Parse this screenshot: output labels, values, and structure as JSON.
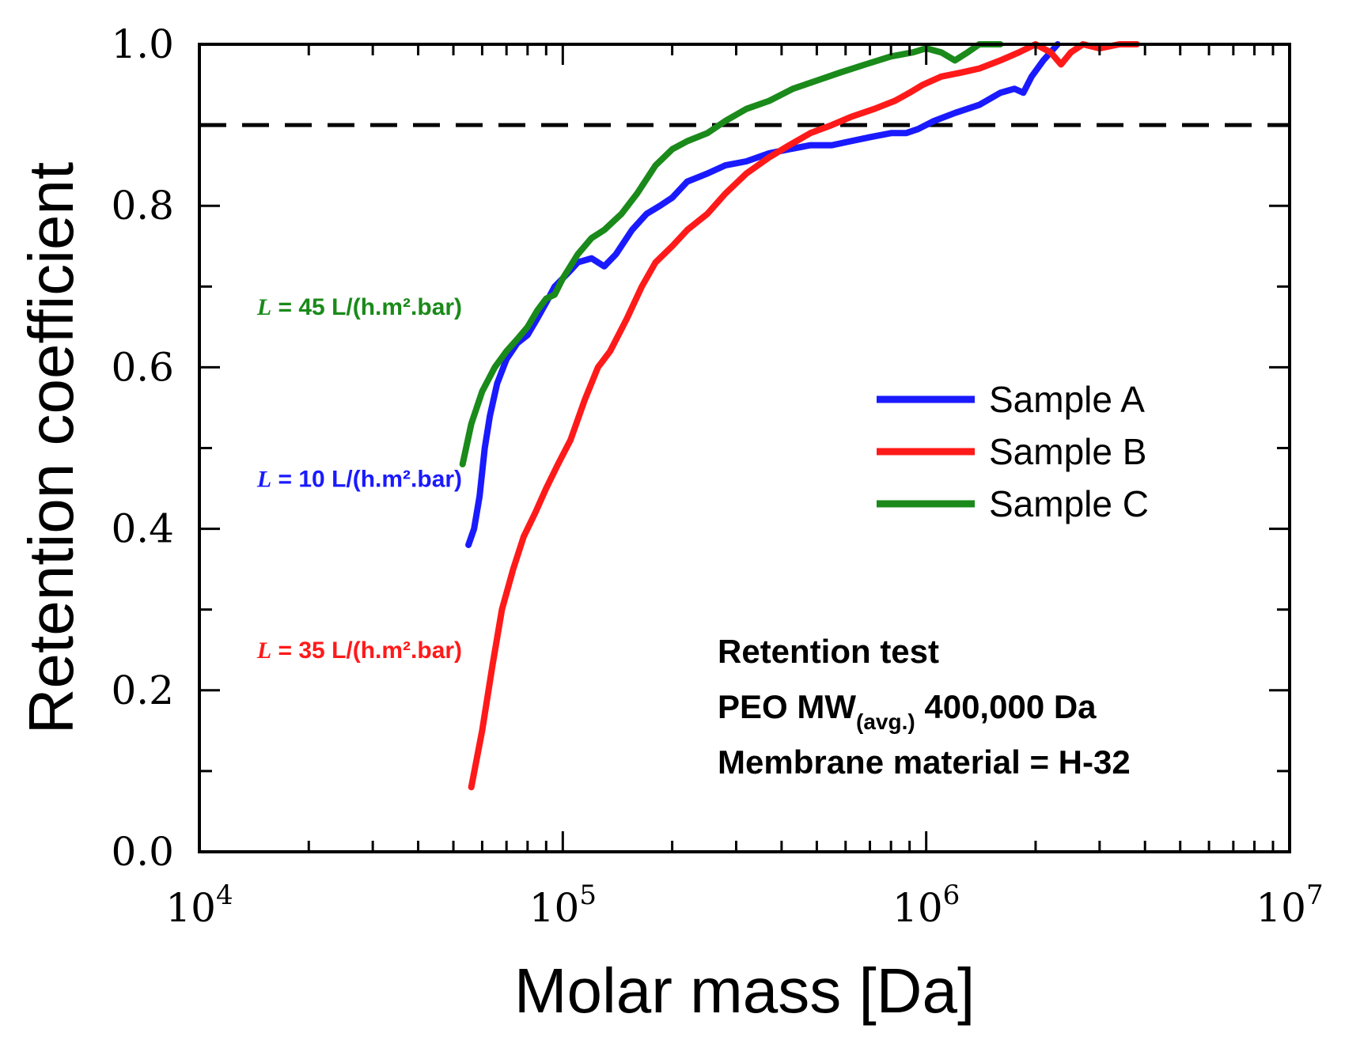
{
  "chart_data": {
    "type": "line",
    "title": "",
    "xlabel": "Molar mass [Da]",
    "ylabel": "Retention coefficient",
    "xscale": "log",
    "xlim": [
      10000,
      10000000
    ],
    "ylim": [
      0.0,
      1.0
    ],
    "x_ticks": [
      {
        "value": 10000,
        "base": "10",
        "exp": "4"
      },
      {
        "value": 100000,
        "base": "10",
        "exp": "5"
      },
      {
        "value": 1000000,
        "base": "10",
        "exp": "6"
      },
      {
        "value": 10000000,
        "base": "10",
        "exp": "7"
      }
    ],
    "y_ticks": [
      {
        "value": 0.0,
        "label": "0.0"
      },
      {
        "value": 0.2,
        "label": "0.2"
      },
      {
        "value": 0.4,
        "label": "0.4"
      },
      {
        "value": 0.6,
        "label": "0.6"
      },
      {
        "value": 0.8,
        "label": "0.8"
      },
      {
        "value": 1.0,
        "label": "1.0"
      }
    ],
    "reference_line": {
      "y": 0.9,
      "style": "dashed",
      "color": "#000000"
    },
    "legend": {
      "position": "center-right"
    },
    "series": [
      {
        "name": "Sample A",
        "color": "#1a1aff",
        "points": [
          [
            55000,
            0.38
          ],
          [
            57000,
            0.4
          ],
          [
            59000,
            0.44
          ],
          [
            61000,
            0.5
          ],
          [
            63000,
            0.54
          ],
          [
            66000,
            0.58
          ],
          [
            70000,
            0.61
          ],
          [
            75000,
            0.63
          ],
          [
            80000,
            0.64
          ],
          [
            85000,
            0.66
          ],
          [
            90000,
            0.68
          ],
          [
            95000,
            0.7
          ],
          [
            100000,
            0.71
          ],
          [
            105000,
            0.72
          ],
          [
            110000,
            0.73
          ],
          [
            120000,
            0.735
          ],
          [
            130000,
            0.725
          ],
          [
            140000,
            0.74
          ],
          [
            155000,
            0.77
          ],
          [
            170000,
            0.79
          ],
          [
            185000,
            0.8
          ],
          [
            200000,
            0.81
          ],
          [
            220000,
            0.83
          ],
          [
            250000,
            0.84
          ],
          [
            280000,
            0.85
          ],
          [
            320000,
            0.855
          ],
          [
            370000,
            0.865
          ],
          [
            420000,
            0.87
          ],
          [
            480000,
            0.875
          ],
          [
            550000,
            0.875
          ],
          [
            620000,
            0.88
          ],
          [
            700000,
            0.885
          ],
          [
            800000,
            0.89
          ],
          [
            880000,
            0.89
          ],
          [
            950000,
            0.895
          ],
          [
            1050000,
            0.905
          ],
          [
            1200000,
            0.915
          ],
          [
            1400000,
            0.925
          ],
          [
            1600000,
            0.94
          ],
          [
            1750000,
            0.945
          ],
          [
            1850000,
            0.94
          ],
          [
            1950000,
            0.96
          ],
          [
            2100000,
            0.98
          ],
          [
            2300000,
            1.0
          ]
        ]
      },
      {
        "name": "Sample B",
        "color": "#ff1a1a",
        "points": [
          [
            56000,
            0.08
          ],
          [
            60000,
            0.15
          ],
          [
            64000,
            0.23
          ],
          [
            68000,
            0.3
          ],
          [
            73000,
            0.35
          ],
          [
            78000,
            0.39
          ],
          [
            84000,
            0.42
          ],
          [
            90000,
            0.45
          ],
          [
            97000,
            0.48
          ],
          [
            105000,
            0.51
          ],
          [
            115000,
            0.56
          ],
          [
            125000,
            0.6
          ],
          [
            135000,
            0.62
          ],
          [
            150000,
            0.66
          ],
          [
            165000,
            0.7
          ],
          [
            180000,
            0.73
          ],
          [
            200000,
            0.75
          ],
          [
            220000,
            0.77
          ],
          [
            250000,
            0.79
          ],
          [
            280000,
            0.815
          ],
          [
            320000,
            0.84
          ],
          [
            370000,
            0.86
          ],
          [
            420000,
            0.875
          ],
          [
            480000,
            0.89
          ],
          [
            550000,
            0.9
          ],
          [
            620000,
            0.91
          ],
          [
            720000,
            0.92
          ],
          [
            820000,
            0.93
          ],
          [
            900000,
            0.94
          ],
          [
            980000,
            0.95
          ],
          [
            1100000,
            0.96
          ],
          [
            1250000,
            0.965
          ],
          [
            1400000,
            0.97
          ],
          [
            1600000,
            0.98
          ],
          [
            1800000,
            0.99
          ],
          [
            2000000,
            1.0
          ],
          [
            2200000,
            0.99
          ],
          [
            2350000,
            0.975
          ],
          [
            2500000,
            0.99
          ],
          [
            2700000,
            1.0
          ],
          [
            3000000,
            0.995
          ],
          [
            3400000,
            1.0
          ],
          [
            3800000,
            1.0
          ]
        ]
      },
      {
        "name": "Sample C",
        "color": "#1a8a1a",
        "points": [
          [
            53000,
            0.48
          ],
          [
            56000,
            0.53
          ],
          [
            60000,
            0.57
          ],
          [
            65000,
            0.6
          ],
          [
            70000,
            0.62
          ],
          [
            75000,
            0.635
          ],
          [
            80000,
            0.65
          ],
          [
            85000,
            0.67
          ],
          [
            90000,
            0.685
          ],
          [
            95000,
            0.69
          ],
          [
            100000,
            0.71
          ],
          [
            110000,
            0.74
          ],
          [
            120000,
            0.76
          ],
          [
            130000,
            0.77
          ],
          [
            145000,
            0.79
          ],
          [
            160000,
            0.815
          ],
          [
            180000,
            0.85
          ],
          [
            200000,
            0.87
          ],
          [
            220000,
            0.88
          ],
          [
            250000,
            0.89
          ],
          [
            280000,
            0.905
          ],
          [
            320000,
            0.92
          ],
          [
            370000,
            0.93
          ],
          [
            430000,
            0.945
          ],
          [
            500000,
            0.955
          ],
          [
            580000,
            0.965
          ],
          [
            680000,
            0.975
          ],
          [
            800000,
            0.985
          ],
          [
            920000,
            0.99
          ],
          [
            1000000,
            0.995
          ],
          [
            1100000,
            0.99
          ],
          [
            1200000,
            0.98
          ],
          [
            1300000,
            0.99
          ],
          [
            1400000,
            1.0
          ],
          [
            1600000,
            1.0
          ]
        ]
      }
    ],
    "flux_labels": [
      {
        "series": "Sample C",
        "prefix": "L",
        "text": " = 45 L/(h.m².bar)",
        "color": "#1a8a1a",
        "at_x": 55000,
        "at_y": 0.665
      },
      {
        "series": "Sample A",
        "prefix": "L",
        "text": " = 10 L/(h.m².bar)",
        "color": "#1a1aff",
        "at_x": 55000,
        "at_y": 0.452
      },
      {
        "series": "Sample B",
        "prefix": "L",
        "text": " = 35 L/(h.m².bar)",
        "color": "#ff1a1a",
        "at_x": 55000,
        "at_y": 0.24
      }
    ],
    "annotation_lines": [
      {
        "text": "Retention test"
      },
      {
        "text": "PEO MW",
        "sub": "(avg.)",
        "rest": " 400,000 Da"
      },
      {
        "text": "Membrane material = H-32"
      }
    ]
  }
}
